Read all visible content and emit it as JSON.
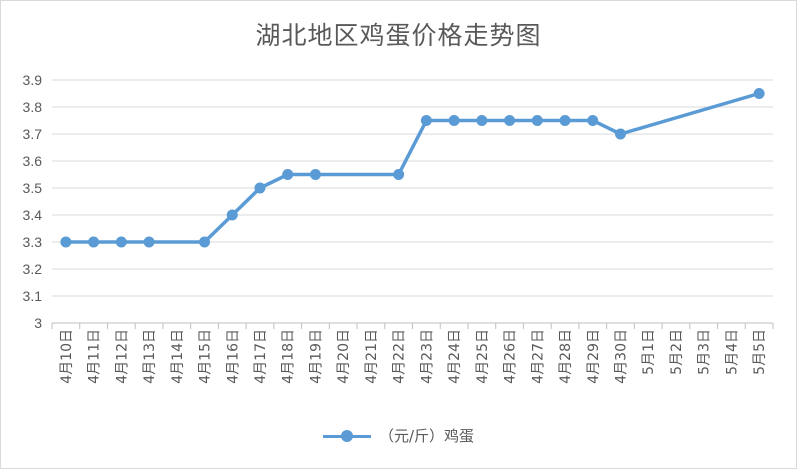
{
  "chart_data": {
    "type": "line",
    "title": "湖北地区鸡蛋价格走势图",
    "xlabel": "",
    "ylabel": "",
    "categories": [
      "4月10日",
      "4月11日",
      "4月12日",
      "4月13日",
      "4月14日",
      "4月15日",
      "4月16日",
      "4月17日",
      "4月18日",
      "4月19日",
      "4月20日",
      "4月21日",
      "4月22日",
      "4月23日",
      "4月24日",
      "4月25日",
      "4月26日",
      "4月27日",
      "4月28日",
      "4月29日",
      "4月30日",
      "5月1日",
      "5月2日",
      "5月3日",
      "5月4日",
      "5月5日"
    ],
    "series": [
      {
        "name": "（元/斤）鸡蛋",
        "color": "#5b9bd5",
        "values": [
          3.3,
          3.3,
          3.3,
          3.3,
          null,
          3.3,
          3.4,
          3.5,
          3.55,
          3.55,
          null,
          null,
          3.55,
          3.75,
          3.75,
          3.75,
          3.75,
          3.75,
          3.75,
          3.75,
          3.7,
          null,
          null,
          null,
          null,
          3.85
        ]
      }
    ],
    "ylim": [
      3,
      3.9
    ],
    "yticks": [
      "3",
      "3.1",
      "3.2",
      "3.3",
      "3.4",
      "3.5",
      "3.6",
      "3.7",
      "3.8",
      "3.9"
    ],
    "grid": true,
    "legend_position": "bottom",
    "gap_handling": "connect"
  }
}
